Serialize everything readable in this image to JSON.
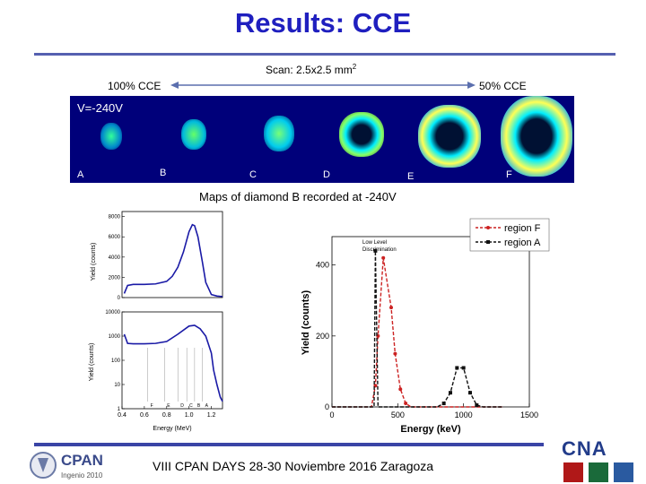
{
  "slide": {
    "title": "Results: CCE",
    "scan_label": "Scan: 2.5x2.5 mm",
    "scan_sup": "2",
    "left_cce": "100% CCE",
    "right_cce": "50% CCE",
    "maps_caption": "Maps of diamond B recorded at -240V",
    "voltage": "V=-240V",
    "panel_labels": [
      "A",
      "B",
      "C",
      "D",
      "E",
      "F"
    ],
    "footer": "VIII CPAN DAYS 28-30 Noviembre 2016 Zaragoza",
    "logo_left_name": "CPAN",
    "logo_left_sub": "Ingenio 2010",
    "logo_right_name": "CNA"
  },
  "chart_data": [
    {
      "type": "line",
      "title": "",
      "xlabel": "",
      "ylabel": "Yield (counts)",
      "xlim": [
        0.4,
        1.3
      ],
      "ylim": [
        0,
        8500
      ],
      "yticks": [
        "0",
        "2000",
        "4000",
        "6000",
        "8000"
      ],
      "series": [
        {
          "name": "spectrum linear",
          "color": "#1a1aa6",
          "x": [
            0.42,
            0.45,
            0.5,
            0.6,
            0.7,
            0.8,
            0.85,
            0.9,
            0.95,
            1.0,
            1.03,
            1.05,
            1.08,
            1.12,
            1.15,
            1.2,
            1.25,
            1.3
          ],
          "y": [
            400,
            1200,
            1300,
            1300,
            1350,
            1600,
            2100,
            3000,
            4500,
            6500,
            7200,
            7100,
            6000,
            3500,
            1500,
            300,
            150,
            100
          ]
        }
      ]
    },
    {
      "type": "line",
      "xlabel": "Energy (MeV)",
      "ylabel": "Yield (counts)",
      "xlim": [
        0.4,
        1.3
      ],
      "ylim_log": [
        1,
        10000
      ],
      "xticks": [
        "0.4",
        "0.6",
        "0.8",
        "1.0",
        "1.2"
      ],
      "yticks": [
        "1",
        "10",
        "100",
        "1000",
        "10000"
      ],
      "region_markers": [
        "F",
        "E",
        "D",
        "C",
        "B",
        "A"
      ],
      "series": [
        {
          "name": "spectrum log",
          "color": "#1a1aa6",
          "x": [
            0.42,
            0.45,
            0.5,
            0.6,
            0.7,
            0.8,
            0.9,
            1.0,
            1.05,
            1.1,
            1.15,
            1.2,
            1.22,
            1.25,
            1.28,
            1.3
          ],
          "y": [
            1200,
            500,
            480,
            480,
            500,
            600,
            1200,
            2600,
            2800,
            2000,
            1000,
            200,
            40,
            10,
            3,
            2
          ]
        }
      ]
    },
    {
      "type": "line",
      "xlabel": "Energy (keV)",
      "ylabel": "Yield (counts)",
      "xlim": [
        0,
        1500
      ],
      "ylim": [
        0,
        480
      ],
      "xticks": [
        "0",
        "500",
        "1000",
        "1500"
      ],
      "yticks": [
        "0",
        "200",
        "400"
      ],
      "annotation": "Low Level Discrimination",
      "legend": [
        "region F",
        "region A"
      ],
      "legend_position": "top-right",
      "series": [
        {
          "name": "region F",
          "color": "#cc2222",
          "x": [
            0,
            100,
            200,
            300,
            330,
            350,
            390,
            450,
            480,
            520,
            560,
            600,
            700,
            800,
            900,
            1000,
            1200,
            1300
          ],
          "y": [
            0,
            0,
            0,
            0,
            60,
            200,
            420,
            280,
            150,
            50,
            10,
            0,
            0,
            0,
            0,
            0,
            0,
            0
          ]
        },
        {
          "name": "region A",
          "color": "#111111",
          "x": [
            0,
            100,
            200,
            300,
            320,
            330,
            350,
            400,
            450,
            500,
            600,
            700,
            800,
            850,
            900,
            950,
            1000,
            1050,
            1100,
            1150,
            1200,
            1300
          ],
          "y": [
            0,
            0,
            0,
            0,
            0,
            440,
            0,
            0,
            0,
            0,
            0,
            0,
            0,
            10,
            40,
            110,
            110,
            40,
            5,
            0,
            0,
            0
          ]
        }
      ]
    }
  ]
}
